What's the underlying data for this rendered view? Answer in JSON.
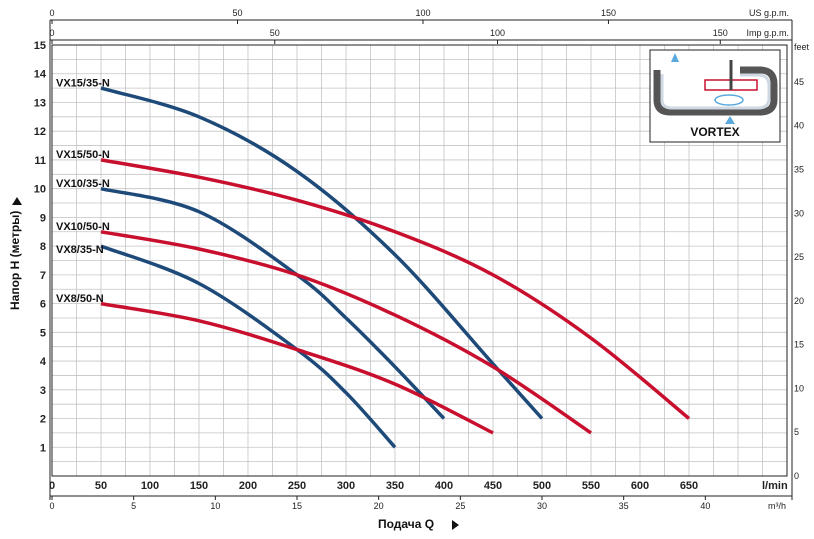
{
  "chart_data": {
    "type": "line",
    "xlabel": "Подача Q",
    "ylabel": "Напор H (метры)",
    "x_unit": "l/min",
    "x_unit_m3h": "m³/h",
    "top_unit_us": "US g.p.m.",
    "top_unit_imp": "Imp g.p.m.",
    "right_unit": "feet",
    "xlim": [
      0,
      750
    ],
    "ylim": [
      0,
      15
    ],
    "x_ticks": [
      0,
      50,
      100,
      150,
      200,
      250,
      300,
      350,
      400,
      450,
      500,
      550,
      600,
      650
    ],
    "y_ticks": [
      1,
      2,
      3,
      4,
      5,
      6,
      7,
      8,
      9,
      10,
      11,
      12,
      13,
      14,
      15
    ],
    "m3h_ticks": [
      0,
      5,
      10,
      15,
      20,
      25,
      30,
      35,
      40
    ],
    "us_gpm_ticks": [
      0,
      50,
      100,
      150
    ],
    "imp_gpm_ticks": [
      0,
      50,
      100,
      150
    ],
    "feet_ticks": [
      0,
      5,
      10,
      15,
      20,
      25,
      30,
      35,
      40,
      45
    ],
    "grid": true,
    "series": [
      {
        "name": "VX15/35-N",
        "color": "#1e4a7a",
        "label_h": 13.7,
        "x": [
          50,
          150,
          250,
          350,
          450,
          500
        ],
        "y": [
          13.5,
          12.5,
          10.6,
          7.7,
          3.9,
          2.0
        ]
      },
      {
        "name": "VX15/50-N",
        "color": "#c8102e",
        "label_h": 11.2,
        "x": [
          50,
          150,
          250,
          350,
          450,
          550,
          650
        ],
        "y": [
          11.0,
          10.4,
          9.6,
          8.5,
          7.0,
          4.8,
          2.0
        ]
      },
      {
        "name": "VX10/35-N",
        "color": "#1e4a7a",
        "label_h": 10.2,
        "x": [
          50,
          150,
          250,
          300,
          350,
          400
        ],
        "y": [
          10.0,
          9.2,
          7.0,
          5.5,
          3.8,
          2.0
        ]
      },
      {
        "name": "VX10/50-N",
        "color": "#c8102e",
        "label_h": 8.7,
        "x": [
          50,
          150,
          250,
          350,
          450,
          550
        ],
        "y": [
          8.5,
          7.9,
          7.0,
          5.6,
          3.8,
          1.5
        ]
      },
      {
        "name": "VX8/35-N",
        "color": "#1e4a7a",
        "label_h": 7.9,
        "x": [
          50,
          150,
          250,
          300,
          350
        ],
        "y": [
          8.0,
          6.7,
          4.4,
          2.9,
          1.0
        ]
      },
      {
        "name": "VX8/50-N",
        "color": "#c8102e",
        "label_h": 6.2,
        "x": [
          50,
          150,
          250,
          350,
          450
        ],
        "y": [
          6.0,
          5.4,
          4.4,
          3.2,
          1.5
        ]
      }
    ]
  },
  "inset": {
    "label": "VORTEX"
  }
}
